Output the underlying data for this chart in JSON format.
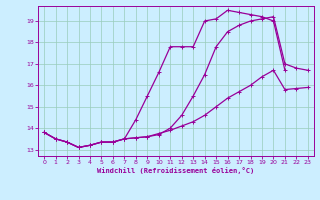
{
  "xlabel": "Windchill (Refroidissement éolien,°C)",
  "background_color": "#cceeff",
  "grid_color": "#99ccbb",
  "line_color": "#990099",
  "xlim": [
    -0.5,
    23.5
  ],
  "ylim": [
    12.7,
    19.7
  ],
  "xticks": [
    0,
    1,
    2,
    3,
    4,
    5,
    6,
    7,
    8,
    9,
    10,
    11,
    12,
    13,
    14,
    15,
    16,
    17,
    18,
    19,
    20,
    21,
    22,
    23
  ],
  "yticks": [
    13,
    14,
    15,
    16,
    17,
    18,
    19
  ],
  "line1_x": [
    0,
    1,
    2,
    3,
    4,
    5,
    6,
    7,
    8,
    9,
    10,
    11,
    12,
    13,
    14,
    15,
    16,
    17,
    18,
    19,
    20,
    21
  ],
  "line1_y": [
    13.8,
    13.5,
    13.35,
    13.1,
    13.2,
    13.35,
    13.35,
    13.5,
    14.4,
    15.5,
    16.6,
    17.8,
    17.8,
    17.8,
    19.0,
    19.1,
    19.5,
    19.4,
    19.3,
    19.2,
    19.0,
    16.7
  ],
  "line2_x": [
    0,
    1,
    2,
    3,
    4,
    5,
    6,
    7,
    8,
    9,
    10,
    11,
    12,
    13,
    14,
    15,
    16,
    17,
    18,
    19,
    20,
    21,
    22,
    23
  ],
  "line2_y": [
    13.8,
    13.5,
    13.35,
    13.1,
    13.2,
    13.35,
    13.35,
    13.5,
    13.55,
    13.6,
    13.7,
    14.0,
    14.6,
    15.5,
    16.5,
    17.8,
    18.5,
    18.8,
    19.0,
    19.1,
    19.2,
    17.0,
    16.8,
    16.7
  ],
  "line3_x": [
    0,
    1,
    2,
    3,
    4,
    5,
    6,
    7,
    8,
    9,
    10,
    11,
    12,
    13,
    14,
    15,
    16,
    17,
    18,
    19,
    20,
    21,
    22,
    23
  ],
  "line3_y": [
    13.8,
    13.5,
    13.35,
    13.1,
    13.2,
    13.35,
    13.35,
    13.5,
    13.55,
    13.6,
    13.75,
    13.9,
    14.1,
    14.3,
    14.6,
    15.0,
    15.4,
    15.7,
    16.0,
    16.4,
    16.7,
    15.8,
    15.85,
    15.9
  ],
  "linewidth": 0.9,
  "marker_size": 3.5
}
